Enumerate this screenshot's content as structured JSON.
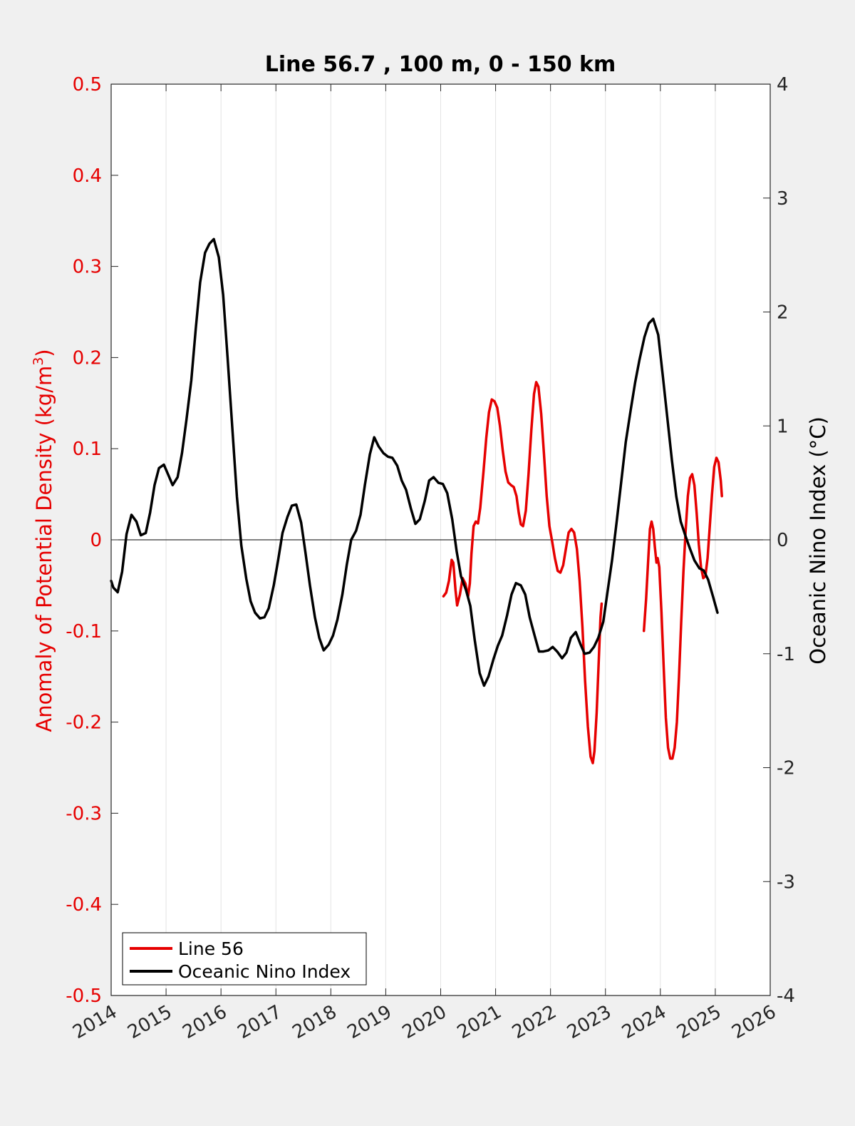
{
  "chart_data": {
    "type": "line",
    "title": "Line 56.7 , 100 m, 0 - 150 km",
    "x_axis": {
      "range": [
        2014,
        2026
      ],
      "ticks": [
        2014,
        2015,
        2016,
        2017,
        2018,
        2019,
        2020,
        2021,
        2022,
        2023,
        2024,
        2025,
        2026
      ],
      "grid": true
    },
    "y_left": {
      "label_main": "Anomaly of Potential Density (kg/m",
      "label_sup": "3",
      "label_end": ")",
      "range": [
        -0.5,
        0.5
      ],
      "ticks": [
        -0.5,
        -0.4,
        -0.3,
        -0.2,
        -0.1,
        0,
        0.1,
        0.2,
        0.3,
        0.4,
        0.5
      ],
      "color": "#e60000"
    },
    "y_right": {
      "label": "Oceanic Nino Index (°C)",
      "range": [
        -4,
        4
      ],
      "ticks": [
        -4,
        -3,
        -2,
        -1,
        0,
        1,
        2,
        3,
        4
      ],
      "color": "#000000"
    },
    "zero_line": true,
    "legend": {
      "placement": "bottom-left",
      "entries": [
        "Line 56",
        "Oceanic Nino Index"
      ]
    },
    "series": [
      {
        "name": "Line 56",
        "axis": "left",
        "color": "#e60000",
        "segments": [
          [
            [
              2020.05,
              -0.062
            ],
            [
              2020.1,
              -0.058
            ],
            [
              2020.15,
              -0.045
            ],
            [
              2020.2,
              -0.022
            ],
            [
              2020.23,
              -0.025
            ],
            [
              2020.27,
              -0.055
            ],
            [
              2020.3,
              -0.072
            ],
            [
              2020.35,
              -0.06
            ],
            [
              2020.4,
              -0.042
            ],
            [
              2020.45,
              -0.048
            ],
            [
              2020.5,
              -0.062
            ],
            [
              2020.53,
              -0.048
            ],
            [
              2020.56,
              -0.015
            ],
            [
              2020.6,
              0.015
            ],
            [
              2020.64,
              0.02
            ],
            [
              2020.68,
              0.018
            ],
            [
              2020.72,
              0.035
            ],
            [
              2020.78,
              0.075
            ],
            [
              2020.83,
              0.112
            ],
            [
              2020.88,
              0.14
            ],
            [
              2020.93,
              0.154
            ],
            [
              2020.98,
              0.152
            ],
            [
              2021.03,
              0.145
            ],
            [
              2021.08,
              0.125
            ],
            [
              2021.13,
              0.098
            ],
            [
              2021.18,
              0.075
            ],
            [
              2021.23,
              0.063
            ],
            [
              2021.28,
              0.06
            ],
            [
              2021.33,
              0.058
            ],
            [
              2021.38,
              0.048
            ],
            [
              2021.42,
              0.03
            ],
            [
              2021.46,
              0.017
            ],
            [
              2021.5,
              0.015
            ],
            [
              2021.55,
              0.032
            ],
            [
              2021.6,
              0.072
            ],
            [
              2021.65,
              0.12
            ],
            [
              2021.7,
              0.16
            ],
            [
              2021.74,
              0.173
            ],
            [
              2021.78,
              0.168
            ],
            [
              2021.83,
              0.138
            ],
            [
              2021.88,
              0.095
            ],
            [
              2021.93,
              0.048
            ],
            [
              2021.98,
              0.015
            ],
            [
              2022.03,
              -0.002
            ],
            [
              2022.08,
              -0.02
            ],
            [
              2022.13,
              -0.034
            ],
            [
              2022.18,
              -0.036
            ],
            [
              2022.23,
              -0.028
            ],
            [
              2022.28,
              -0.01
            ],
            [
              2022.33,
              0.008
            ],
            [
              2022.38,
              0.012
            ],
            [
              2022.43,
              0.008
            ],
            [
              2022.48,
              -0.01
            ],
            [
              2022.53,
              -0.045
            ],
            [
              2022.58,
              -0.095
            ],
            [
              2022.63,
              -0.155
            ],
            [
              2022.68,
              -0.205
            ],
            [
              2022.73,
              -0.238
            ],
            [
              2022.77,
              -0.245
            ],
            [
              2022.8,
              -0.232
            ],
            [
              2022.84,
              -0.19
            ],
            [
              2022.88,
              -0.13
            ],
            [
              2022.91,
              -0.085
            ],
            [
              2022.93,
              -0.07
            ]
          ],
          [
            [
              2023.7,
              -0.1
            ],
            [
              2023.74,
              -0.065
            ],
            [
              2023.78,
              -0.02
            ],
            [
              2023.81,
              0.012
            ],
            [
              2023.84,
              0.02
            ],
            [
              2023.87,
              0.012
            ],
            [
              2023.9,
              -0.008
            ],
            [
              2023.93,
              -0.025
            ],
            [
              2023.95,
              -0.02
            ],
            [
              2023.98,
              -0.03
            ],
            [
              2024.02,
              -0.08
            ],
            [
              2024.06,
              -0.14
            ],
            [
              2024.1,
              -0.195
            ],
            [
              2024.14,
              -0.228
            ],
            [
              2024.18,
              -0.24
            ],
            [
              2024.22,
              -0.24
            ],
            [
              2024.26,
              -0.228
            ],
            [
              2024.3,
              -0.2
            ],
            [
              2024.34,
              -0.15
            ],
            [
              2024.38,
              -0.09
            ],
            [
              2024.42,
              -0.035
            ],
            [
              2024.46,
              0.01
            ],
            [
              2024.5,
              0.048
            ],
            [
              2024.54,
              0.068
            ],
            [
              2024.58,
              0.072
            ],
            [
              2024.62,
              0.06
            ],
            [
              2024.66,
              0.03
            ],
            [
              2024.7,
              -0.005
            ],
            [
              2024.74,
              -0.03
            ],
            [
              2024.78,
              -0.042
            ],
            [
              2024.82,
              -0.04
            ],
            [
              2024.86,
              -0.02
            ],
            [
              2024.9,
              0.015
            ],
            [
              2024.94,
              0.05
            ],
            [
              2024.98,
              0.08
            ],
            [
              2025.02,
              0.09
            ],
            [
              2025.06,
              0.085
            ],
            [
              2025.1,
              0.065
            ],
            [
              2025.12,
              0.048
            ]
          ]
        ]
      },
      {
        "name": "Oceanic Nino Index",
        "axis": "right",
        "color": "#000000",
        "points": [
          [
            2014.0,
            -0.36
          ],
          [
            2014.04,
            -0.42
          ],
          [
            2014.12,
            -0.46
          ],
          [
            2014.2,
            -0.28
          ],
          [
            2014.28,
            0.05
          ],
          [
            2014.37,
            0.22
          ],
          [
            2014.46,
            0.16
          ],
          [
            2014.54,
            0.04
          ],
          [
            2014.63,
            0.06
          ],
          [
            2014.71,
            0.24
          ],
          [
            2014.79,
            0.48
          ],
          [
            2014.87,
            0.63
          ],
          [
            2014.96,
            0.66
          ],
          [
            2015.04,
            0.57
          ],
          [
            2015.12,
            0.48
          ],
          [
            2015.21,
            0.55
          ],
          [
            2015.29,
            0.76
          ],
          [
            2015.37,
            1.05
          ],
          [
            2015.46,
            1.4
          ],
          [
            2015.54,
            1.85
          ],
          [
            2015.62,
            2.26
          ],
          [
            2015.71,
            2.52
          ],
          [
            2015.79,
            2.6
          ],
          [
            2015.87,
            2.64
          ],
          [
            2015.96,
            2.48
          ],
          [
            2016.04,
            2.15
          ],
          [
            2016.12,
            1.6
          ],
          [
            2016.21,
            0.95
          ],
          [
            2016.29,
            0.38
          ],
          [
            2016.37,
            -0.05
          ],
          [
            2016.46,
            -0.34
          ],
          [
            2016.54,
            -0.54
          ],
          [
            2016.62,
            -0.64
          ],
          [
            2016.71,
            -0.69
          ],
          [
            2016.79,
            -0.68
          ],
          [
            2016.87,
            -0.6
          ],
          [
            2016.96,
            -0.4
          ],
          [
            2017.04,
            -0.18
          ],
          [
            2017.12,
            0.06
          ],
          [
            2017.21,
            0.2
          ],
          [
            2017.29,
            0.3
          ],
          [
            2017.37,
            0.31
          ],
          [
            2017.46,
            0.15
          ],
          [
            2017.54,
            -0.12
          ],
          [
            2017.62,
            -0.4
          ],
          [
            2017.71,
            -0.68
          ],
          [
            2017.79,
            -0.86
          ],
          [
            2017.87,
            -0.97
          ],
          [
            2017.96,
            -0.92
          ],
          [
            2018.04,
            -0.84
          ],
          [
            2018.12,
            -0.7
          ],
          [
            2018.21,
            -0.48
          ],
          [
            2018.29,
            -0.22
          ],
          [
            2018.37,
            0.0
          ],
          [
            2018.46,
            0.08
          ],
          [
            2018.54,
            0.22
          ],
          [
            2018.62,
            0.48
          ],
          [
            2018.71,
            0.75
          ],
          [
            2018.79,
            0.9
          ],
          [
            2018.87,
            0.82
          ],
          [
            2018.96,
            0.76
          ],
          [
            2019.04,
            0.73
          ],
          [
            2019.12,
            0.72
          ],
          [
            2019.21,
            0.65
          ],
          [
            2019.29,
            0.52
          ],
          [
            2019.37,
            0.44
          ],
          [
            2019.46,
            0.27
          ],
          [
            2019.54,
            0.14
          ],
          [
            2019.62,
            0.18
          ],
          [
            2019.71,
            0.34
          ],
          [
            2019.79,
            0.52
          ],
          [
            2019.87,
            0.55
          ],
          [
            2019.96,
            0.5
          ],
          [
            2020.04,
            0.49
          ],
          [
            2020.12,
            0.41
          ],
          [
            2020.21,
            0.18
          ],
          [
            2020.29,
            -0.1
          ],
          [
            2020.37,
            -0.32
          ],
          [
            2020.46,
            -0.44
          ],
          [
            2020.54,
            -0.58
          ],
          [
            2020.62,
            -0.88
          ],
          [
            2020.71,
            -1.17
          ],
          [
            2020.79,
            -1.28
          ],
          [
            2020.87,
            -1.2
          ],
          [
            2020.96,
            -1.05
          ],
          [
            2021.04,
            -0.93
          ],
          [
            2021.12,
            -0.84
          ],
          [
            2021.21,
            -0.66
          ],
          [
            2021.29,
            -0.48
          ],
          [
            2021.37,
            -0.38
          ],
          [
            2021.46,
            -0.4
          ],
          [
            2021.54,
            -0.48
          ],
          [
            2021.62,
            -0.68
          ],
          [
            2021.71,
            -0.84
          ],
          [
            2021.79,
            -0.98
          ],
          [
            2021.87,
            -0.98
          ],
          [
            2021.96,
            -0.97
          ],
          [
            2022.04,
            -0.94
          ],
          [
            2022.12,
            -0.98
          ],
          [
            2022.21,
            -1.04
          ],
          [
            2022.29,
            -0.99
          ],
          [
            2022.37,
            -0.86
          ],
          [
            2022.46,
            -0.81
          ],
          [
            2022.54,
            -0.91
          ],
          [
            2022.62,
            -1.0
          ],
          [
            2022.71,
            -0.99
          ],
          [
            2022.79,
            -0.94
          ],
          [
            2022.87,
            -0.86
          ],
          [
            2022.96,
            -0.72
          ],
          [
            2023.04,
            -0.45
          ],
          [
            2023.12,
            -0.18
          ],
          [
            2023.21,
            0.18
          ],
          [
            2023.29,
            0.52
          ],
          [
            2023.37,
            0.86
          ],
          [
            2023.46,
            1.14
          ],
          [
            2023.54,
            1.38
          ],
          [
            2023.62,
            1.58
          ],
          [
            2023.71,
            1.78
          ],
          [
            2023.79,
            1.9
          ],
          [
            2023.87,
            1.94
          ],
          [
            2023.96,
            1.8
          ],
          [
            2024.04,
            1.46
          ],
          [
            2024.12,
            1.1
          ],
          [
            2024.21,
            0.7
          ],
          [
            2024.29,
            0.38
          ],
          [
            2024.37,
            0.16
          ],
          [
            2024.46,
            0.03
          ],
          [
            2024.54,
            -0.08
          ],
          [
            2024.62,
            -0.18
          ],
          [
            2024.71,
            -0.25
          ],
          [
            2024.79,
            -0.27
          ],
          [
            2024.87,
            -0.35
          ],
          [
            2024.96,
            -0.5
          ],
          [
            2025.04,
            -0.64
          ]
        ]
      }
    ]
  }
}
